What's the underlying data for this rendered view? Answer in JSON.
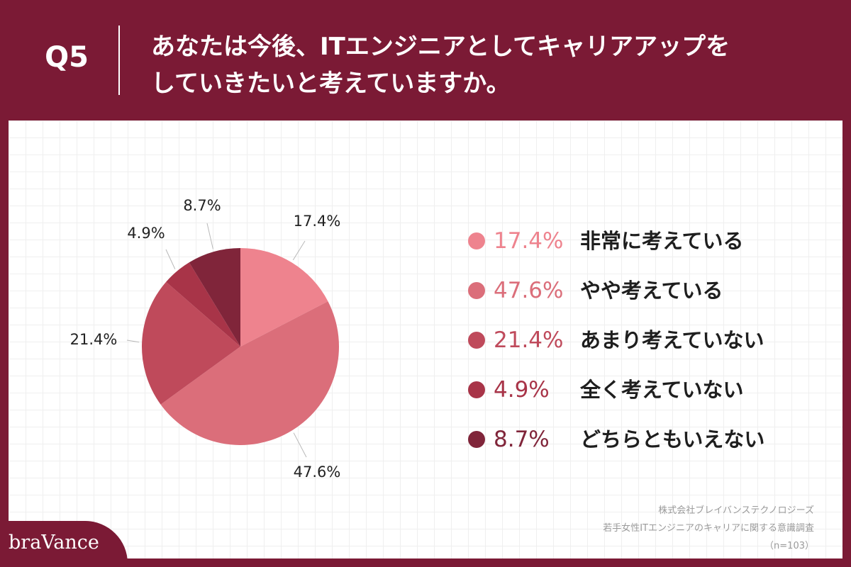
{
  "question": {
    "number": "Q5",
    "title_lines": [
      "あなたは今後、ITエンジニアとしてキャリアアップを",
      "していきたいと考えていますか。"
    ]
  },
  "chart_data": {
    "type": "pie",
    "title": "あなたは今後、ITエンジニアとしてキャリアアップをしていきたいと考えていますか。",
    "slices": [
      {
        "label": "非常に考えている",
        "value": 17.4,
        "display": "17.4%",
        "color": "#ee838e",
        "text_color": "#ee838e"
      },
      {
        "label": "やや考えている",
        "value": 47.6,
        "display": "47.6%",
        "color": "#db6e7a",
        "text_color": "#db6e7a"
      },
      {
        "label": "あまり考えていない",
        "value": 21.4,
        "display": "21.4%",
        "color": "#bf4a5b",
        "text_color": "#bf4a5b"
      },
      {
        "label": "全く考えていない",
        "value": 4.9,
        "display": "4.9%",
        "color": "#a83448",
        "text_color": "#a83448"
      },
      {
        "label": "どちらともいえない",
        "value": 8.7,
        "display": "8.7%",
        "color": "#80253a",
        "text_color": "#80253a"
      }
    ],
    "start_angle": "12 o'clock",
    "direction": "clockwise",
    "legend_position": "right",
    "grid": true
  },
  "source": {
    "company": "株式会社ブレイバンステクノロジーズ",
    "survey": "若手女性ITエンジニアのキャリアに関する意識調査",
    "sample": "（n=103）"
  },
  "brand": {
    "logo": "braVance"
  },
  "colors": {
    "background": "#7b1a35",
    "panel": "#ffffff",
    "grid": "#efefef"
  }
}
